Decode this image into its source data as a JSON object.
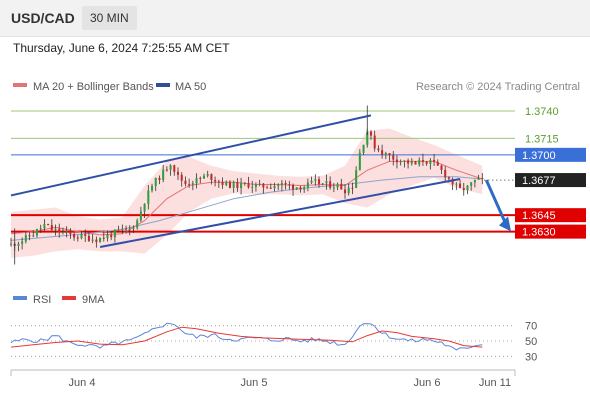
{
  "header": {
    "symbol": "USD/CAD",
    "timeframe": "30 MIN",
    "datetime": "Thursday, June 6, 2024 7:25:55 AM CET"
  },
  "legend": {
    "ma20_label": "MA 20 + Bollinger Bands",
    "ma50_label": "MA 50",
    "credit": "Research © 2024 Trading Central"
  },
  "rsi_legend": {
    "rsi_label": "RSI",
    "ma_label": "9MA"
  },
  "colors": {
    "candle_up": "#2e9e3e",
    "candle_down": "#c62828",
    "ma20": "#e57373",
    "bollinger_fill": "#fbd9d9",
    "ma50": "#2f4f99",
    "channel": "#2f4fa8",
    "resistance_green": "#9bc87a",
    "pivot_blue": "#3a6fd8",
    "support_red": "#e00000",
    "rsi": "#5b86d6",
    "rsi_ma": "#e53935"
  },
  "chart_data": [
    {
      "type": "candlestick",
      "title": "USD/CAD",
      "x_labels": [
        "Jun 4",
        "Jun 5",
        "Jun 6",
        "Jun 11"
      ],
      "ylim": [
        1.3595,
        1.375
      ],
      "current_price": "1.3677",
      "levels": [
        {
          "value": 1.374,
          "label": "1.3740",
          "kind": "resistance"
        },
        {
          "value": 1.3715,
          "label": "1.3715",
          "kind": "resistance"
        },
        {
          "value": 1.37,
          "label": "1.3700",
          "kind": "pivot"
        },
        {
          "value": 1.3645,
          "label": "1.3645",
          "kind": "support"
        },
        {
          "value": 1.363,
          "label": "1.3630",
          "kind": "support"
        }
      ],
      "channel": {
        "upper": [
          [
            0,
            1.3663
          ],
          [
            97,
            1.3736
          ]
        ],
        "lower": [
          [
            24,
            1.3616
          ],
          [
            121,
            1.3678
          ]
        ]
      },
      "forecast_arrow": [
        [
          1.3677
        ],
        [
          1.3632
        ]
      ],
      "close_path": [
        [
          0,
          1.3618
        ],
        [
          3,
          1.3622
        ],
        [
          6,
          1.3628
        ],
        [
          9,
          1.3636
        ],
        [
          11,
          1.3632
        ],
        [
          13,
          1.363
        ],
        [
          15,
          1.3628
        ],
        [
          17,
          1.3626
        ],
        [
          20,
          1.3625
        ],
        [
          23,
          1.3623
        ],
        [
          26,
          1.3626
        ],
        [
          29,
          1.363
        ],
        [
          32,
          1.3632
        ],
        [
          34,
          1.364
        ],
        [
          36,
          1.3658
        ],
        [
          38,
          1.3672
        ],
        [
          41,
          1.3684
        ],
        [
          43,
          1.3693
        ],
        [
          45,
          1.368
        ],
        [
          47,
          1.3674
        ],
        [
          50,
          1.3677
        ],
        [
          53,
          1.3681
        ],
        [
          56,
          1.3676
        ],
        [
          58,
          1.3673
        ],
        [
          61,
          1.3672
        ],
        [
          64,
          1.3673
        ],
        [
          67,
          1.3671
        ],
        [
          70,
          1.3672
        ],
        [
          73,
          1.3673
        ],
        [
          76,
          1.3671
        ],
        [
          79,
          1.3671
        ],
        [
          82,
          1.3675
        ],
        [
          85,
          1.3673
        ],
        [
          88,
          1.3672
        ],
        [
          90,
          1.3668
        ],
        [
          92,
          1.3672
        ],
        [
          94,
          1.3702
        ],
        [
          96,
          1.3722
        ],
        [
          98,
          1.3708
        ],
        [
          100,
          1.3702
        ],
        [
          103,
          1.3697
        ],
        [
          106,
          1.3694
        ],
        [
          109,
          1.3691
        ],
        [
          111,
          1.3695
        ],
        [
          113,
          1.3693
        ],
        [
          115,
          1.3689
        ],
        [
          117,
          1.3682
        ],
        [
          119,
          1.3674
        ],
        [
          121,
          1.3668
        ],
        [
          123,
          1.367
        ],
        [
          125,
          1.3676
        ],
        [
          127,
          1.3677
        ]
      ],
      "ma20": [
        [
          0,
          1.3628
        ],
        [
          6,
          1.363
        ],
        [
          12,
          1.3634
        ],
        [
          18,
          1.363
        ],
        [
          24,
          1.3627
        ],
        [
          30,
          1.3628
        ],
        [
          36,
          1.364
        ],
        [
          42,
          1.366
        ],
        [
          48,
          1.3672
        ],
        [
          54,
          1.3675
        ],
        [
          60,
          1.3675
        ],
        [
          66,
          1.3673
        ],
        [
          72,
          1.3673
        ],
        [
          78,
          1.3672
        ],
        [
          84,
          1.3673
        ],
        [
          90,
          1.3672
        ],
        [
          96,
          1.3686
        ],
        [
          102,
          1.3694
        ],
        [
          108,
          1.3694
        ],
        [
          114,
          1.3694
        ],
        [
          120,
          1.3686
        ],
        [
          127,
          1.3678
        ]
      ],
      "bb_upper": [
        [
          0,
          1.3648
        ],
        [
          6,
          1.365
        ],
        [
          12,
          1.3652
        ],
        [
          18,
          1.3644
        ],
        [
          24,
          1.3641
        ],
        [
          30,
          1.3643
        ],
        [
          36,
          1.3672
        ],
        [
          42,
          1.3694
        ],
        [
          48,
          1.3698
        ],
        [
          54,
          1.369
        ],
        [
          60,
          1.3685
        ],
        [
          66,
          1.3683
        ],
        [
          72,
          1.3681
        ],
        [
          78,
          1.368
        ],
        [
          84,
          1.3681
        ],
        [
          90,
          1.369
        ],
        [
          96,
          1.3722
        ],
        [
          102,
          1.3724
        ],
        [
          108,
          1.3716
        ],
        [
          114,
          1.3709
        ],
        [
          120,
          1.37
        ],
        [
          127,
          1.369
        ]
      ],
      "bb_lower": [
        [
          0,
          1.3606
        ],
        [
          6,
          1.3608
        ],
        [
          12,
          1.3612
        ],
        [
          18,
          1.3614
        ],
        [
          24,
          1.3612
        ],
        [
          30,
          1.3612
        ],
        [
          36,
          1.361
        ],
        [
          42,
          1.3627
        ],
        [
          48,
          1.3648
        ],
        [
          54,
          1.366
        ],
        [
          60,
          1.3665
        ],
        [
          66,
          1.3664
        ],
        [
          72,
          1.3664
        ],
        [
          78,
          1.3663
        ],
        [
          84,
          1.3664
        ],
        [
          90,
          1.3656
        ],
        [
          96,
          1.3652
        ],
        [
          102,
          1.3664
        ],
        [
          108,
          1.3672
        ],
        [
          114,
          1.3679
        ],
        [
          120,
          1.367
        ],
        [
          127,
          1.3664
        ]
      ],
      "ma50": [
        [
          0,
          1.3622
        ],
        [
          10,
          1.3625
        ],
        [
          20,
          1.3628
        ],
        [
          30,
          1.3632
        ],
        [
          40,
          1.364
        ],
        [
          50,
          1.365
        ],
        [
          60,
          1.366
        ],
        [
          70,
          1.3666
        ],
        [
          80,
          1.367
        ],
        [
          90,
          1.3673
        ],
        [
          100,
          1.3677
        ],
        [
          110,
          1.368
        ],
        [
          120,
          1.368
        ],
        [
          127,
          1.3678
        ]
      ]
    },
    {
      "type": "line",
      "title": "RSI",
      "ylim": [
        20,
        80
      ],
      "y_ticks": [
        70,
        50,
        30
      ],
      "series": [
        {
          "name": "RSI",
          "values": [
            [
              0,
              48
            ],
            [
              4,
              52
            ],
            [
              8,
              50
            ],
            [
              12,
              57
            ],
            [
              16,
              47
            ],
            [
              20,
              45
            ],
            [
              24,
              41
            ],
            [
              28,
              47
            ],
            [
              32,
              50
            ],
            [
              36,
              58
            ],
            [
              40,
              70
            ],
            [
              44,
              73
            ],
            [
              47,
              60
            ],
            [
              50,
              55
            ],
            [
              54,
              58
            ],
            [
              58,
              53
            ],
            [
              62,
              52
            ],
            [
              66,
              54
            ],
            [
              70,
              51
            ],
            [
              74,
              53
            ],
            [
              78,
              50
            ],
            [
              82,
              52
            ],
            [
              86,
              49
            ],
            [
              90,
              45
            ],
            [
              94,
              70
            ],
            [
              97,
              75
            ],
            [
              100,
              60
            ],
            [
              104,
              53
            ],
            [
              108,
              50
            ],
            [
              112,
              52
            ],
            [
              116,
              48
            ],
            [
              120,
              37
            ],
            [
              123,
              42
            ],
            [
              127,
              47
            ]
          ]
        },
        {
          "name": "9MA",
          "values": [
            [
              0,
              42
            ],
            [
              6,
              45
            ],
            [
              12,
              48
            ],
            [
              18,
              50
            ],
            [
              24,
              46
            ],
            [
              30,
              45
            ],
            [
              36,
              50
            ],
            [
              42,
              62
            ],
            [
              46,
              68
            ],
            [
              50,
              66
            ],
            [
              56,
              60
            ],
            [
              62,
              56
            ],
            [
              68,
              54
            ],
            [
              74,
              53
            ],
            [
              80,
              52
            ],
            [
              86,
              51
            ],
            [
              92,
              49
            ],
            [
              96,
              57
            ],
            [
              100,
              63
            ],
            [
              104,
              61
            ],
            [
              108,
              56
            ],
            [
              114,
              53
            ],
            [
              118,
              50
            ],
            [
              122,
              44
            ],
            [
              127,
              42
            ]
          ]
        }
      ]
    }
  ]
}
